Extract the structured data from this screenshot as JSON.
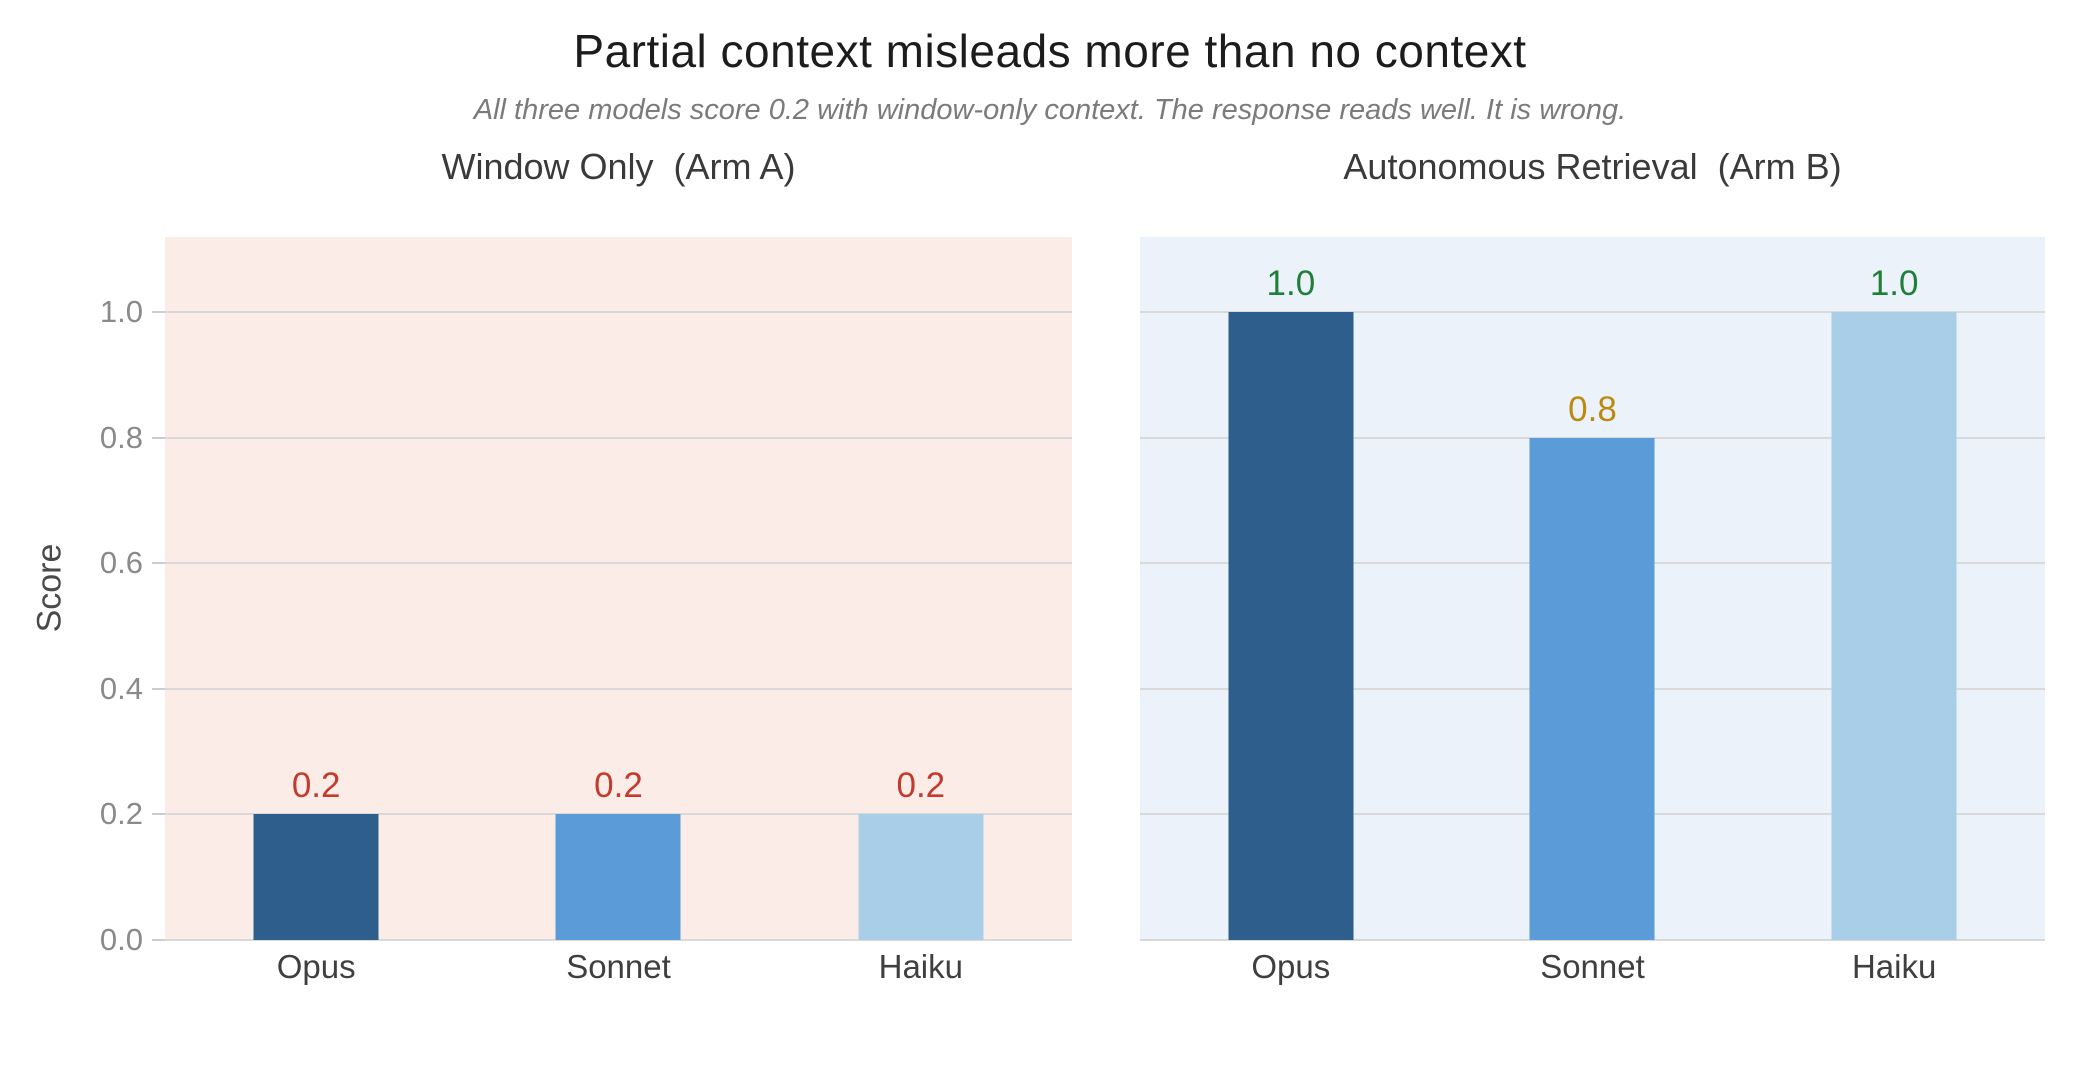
{
  "figure": {
    "title": "Partial context misleads more than no context",
    "subtitle": "All three models score 0.2 with window-only context. The response reads well. It is wrong.",
    "y_axis_label": "Score"
  },
  "chart_data": [
    {
      "type": "bar",
      "title": "Window Only  (Arm A)",
      "categories": [
        "Opus",
        "Sonnet",
        "Haiku"
      ],
      "values": [
        0.2,
        0.2,
        0.2
      ],
      "value_labels": [
        "0.2",
        "0.2",
        "0.2"
      ],
      "value_label_colors": [
        "#c23b2c",
        "#c23b2c",
        "#c23b2c"
      ],
      "bar_colors": [
        "#2e5f8c",
        "#5b9bd8",
        "#a9cfe8"
      ],
      "plot_bg": "#fbece8",
      "ylabel": "Score",
      "ylim": [
        0,
        1.12
      ],
      "yticks": [
        0,
        0.2,
        0.4,
        0.6,
        0.8,
        1.0
      ],
      "ytick_labels": [
        "0.0",
        "0.2",
        "0.4",
        "0.6",
        "0.8",
        "1.0"
      ],
      "show_ytick_labels": true,
      "grid": true,
      "legend": "none"
    },
    {
      "type": "bar",
      "title": "Autonomous Retrieval  (Arm B)",
      "categories": [
        "Opus",
        "Sonnet",
        "Haiku"
      ],
      "values": [
        1.0,
        0.8,
        1.0
      ],
      "value_labels": [
        "1.0",
        "0.8",
        "1.0"
      ],
      "value_label_colors": [
        "#1e7e3a",
        "#bd8a10",
        "#1e7e3a"
      ],
      "bar_colors": [
        "#2e5f8c",
        "#5b9bd8",
        "#a9cfe8"
      ],
      "plot_bg": "#ebf2f9",
      "ylim": [
        0,
        1.12
      ],
      "yticks": [
        0,
        0.2,
        0.4,
        0.6,
        0.8,
        1.0
      ],
      "ytick_labels": [
        "0.0",
        "0.2",
        "0.4",
        "0.6",
        "0.8",
        "1.0"
      ],
      "show_ytick_labels": false,
      "grid": true,
      "legend": "none"
    }
  ],
  "colors": {
    "grid": "#d9d9d9",
    "tick_label": "#8a8a8a",
    "title": "#1c1c1c",
    "subtitle": "#7b7b7b",
    "panel_title": "#3a3a3a",
    "category_label": "#3f3f3f"
  }
}
